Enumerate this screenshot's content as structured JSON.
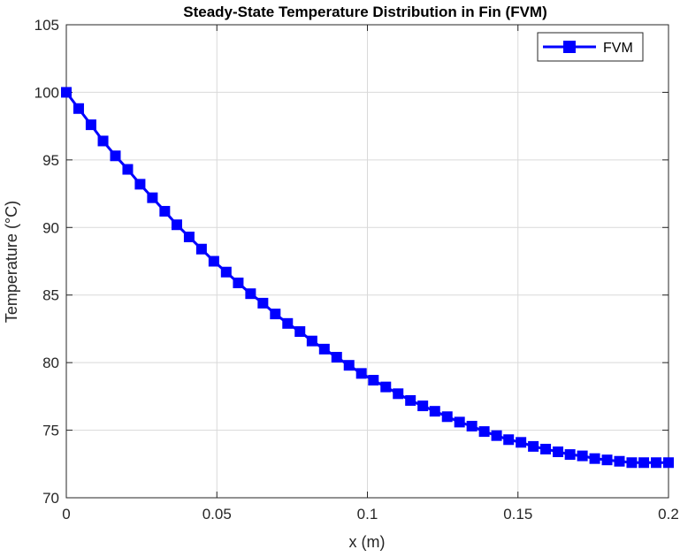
{
  "chart_data": {
    "type": "line",
    "title": "Steady-State Temperature Distribution in Fin (FVM)",
    "xlabel": "x (m)",
    "ylabel": "Temperature (°C)",
    "xlim": [
      0,
      0.2
    ],
    "ylim": [
      70,
      105
    ],
    "xticks": [
      0,
      0.05,
      0.1,
      0.15,
      0.2
    ],
    "xtick_labels": [
      "0",
      "0.05",
      "0.1",
      "0.15",
      "0.2"
    ],
    "yticks": [
      70,
      75,
      80,
      85,
      90,
      95,
      100,
      105
    ],
    "ytick_labels": [
      "70",
      "75",
      "80",
      "85",
      "90",
      "95",
      "100",
      "105"
    ],
    "grid": true,
    "legend_position": "top-right",
    "series": [
      {
        "name": "FVM",
        "color": "#0000ff",
        "marker": "square",
        "x": [
          0,
          0.0041,
          0.0082,
          0.0122,
          0.0163,
          0.0204,
          0.0245,
          0.0286,
          0.0327,
          0.0367,
          0.0408,
          0.0449,
          0.049,
          0.0531,
          0.0571,
          0.0612,
          0.0653,
          0.0694,
          0.0735,
          0.0776,
          0.0816,
          0.0857,
          0.0898,
          0.0939,
          0.098,
          0.102,
          0.1061,
          0.1102,
          0.1143,
          0.1184,
          0.1224,
          0.1265,
          0.1306,
          0.1347,
          0.1388,
          0.1429,
          0.1469,
          0.151,
          0.1551,
          0.1592,
          0.1633,
          0.1673,
          0.1714,
          0.1755,
          0.1796,
          0.1837,
          0.1878,
          0.1918,
          0.1959,
          0.2
        ],
        "y": [
          100.0,
          98.8,
          97.6,
          96.4,
          95.3,
          94.3,
          93.2,
          92.2,
          91.2,
          90.2,
          89.3,
          88.4,
          87.5,
          86.7,
          85.9,
          85.1,
          84.4,
          83.6,
          82.9,
          82.3,
          81.6,
          81.0,
          80.4,
          79.8,
          79.2,
          78.7,
          78.2,
          77.7,
          77.2,
          76.8,
          76.4,
          76.0,
          75.6,
          75.3,
          74.9,
          74.6,
          74.3,
          74.1,
          73.8,
          73.6,
          73.4,
          73.2,
          73.1,
          72.9,
          72.8,
          72.7,
          72.6,
          72.6,
          72.6,
          72.6
        ]
      }
    ]
  }
}
